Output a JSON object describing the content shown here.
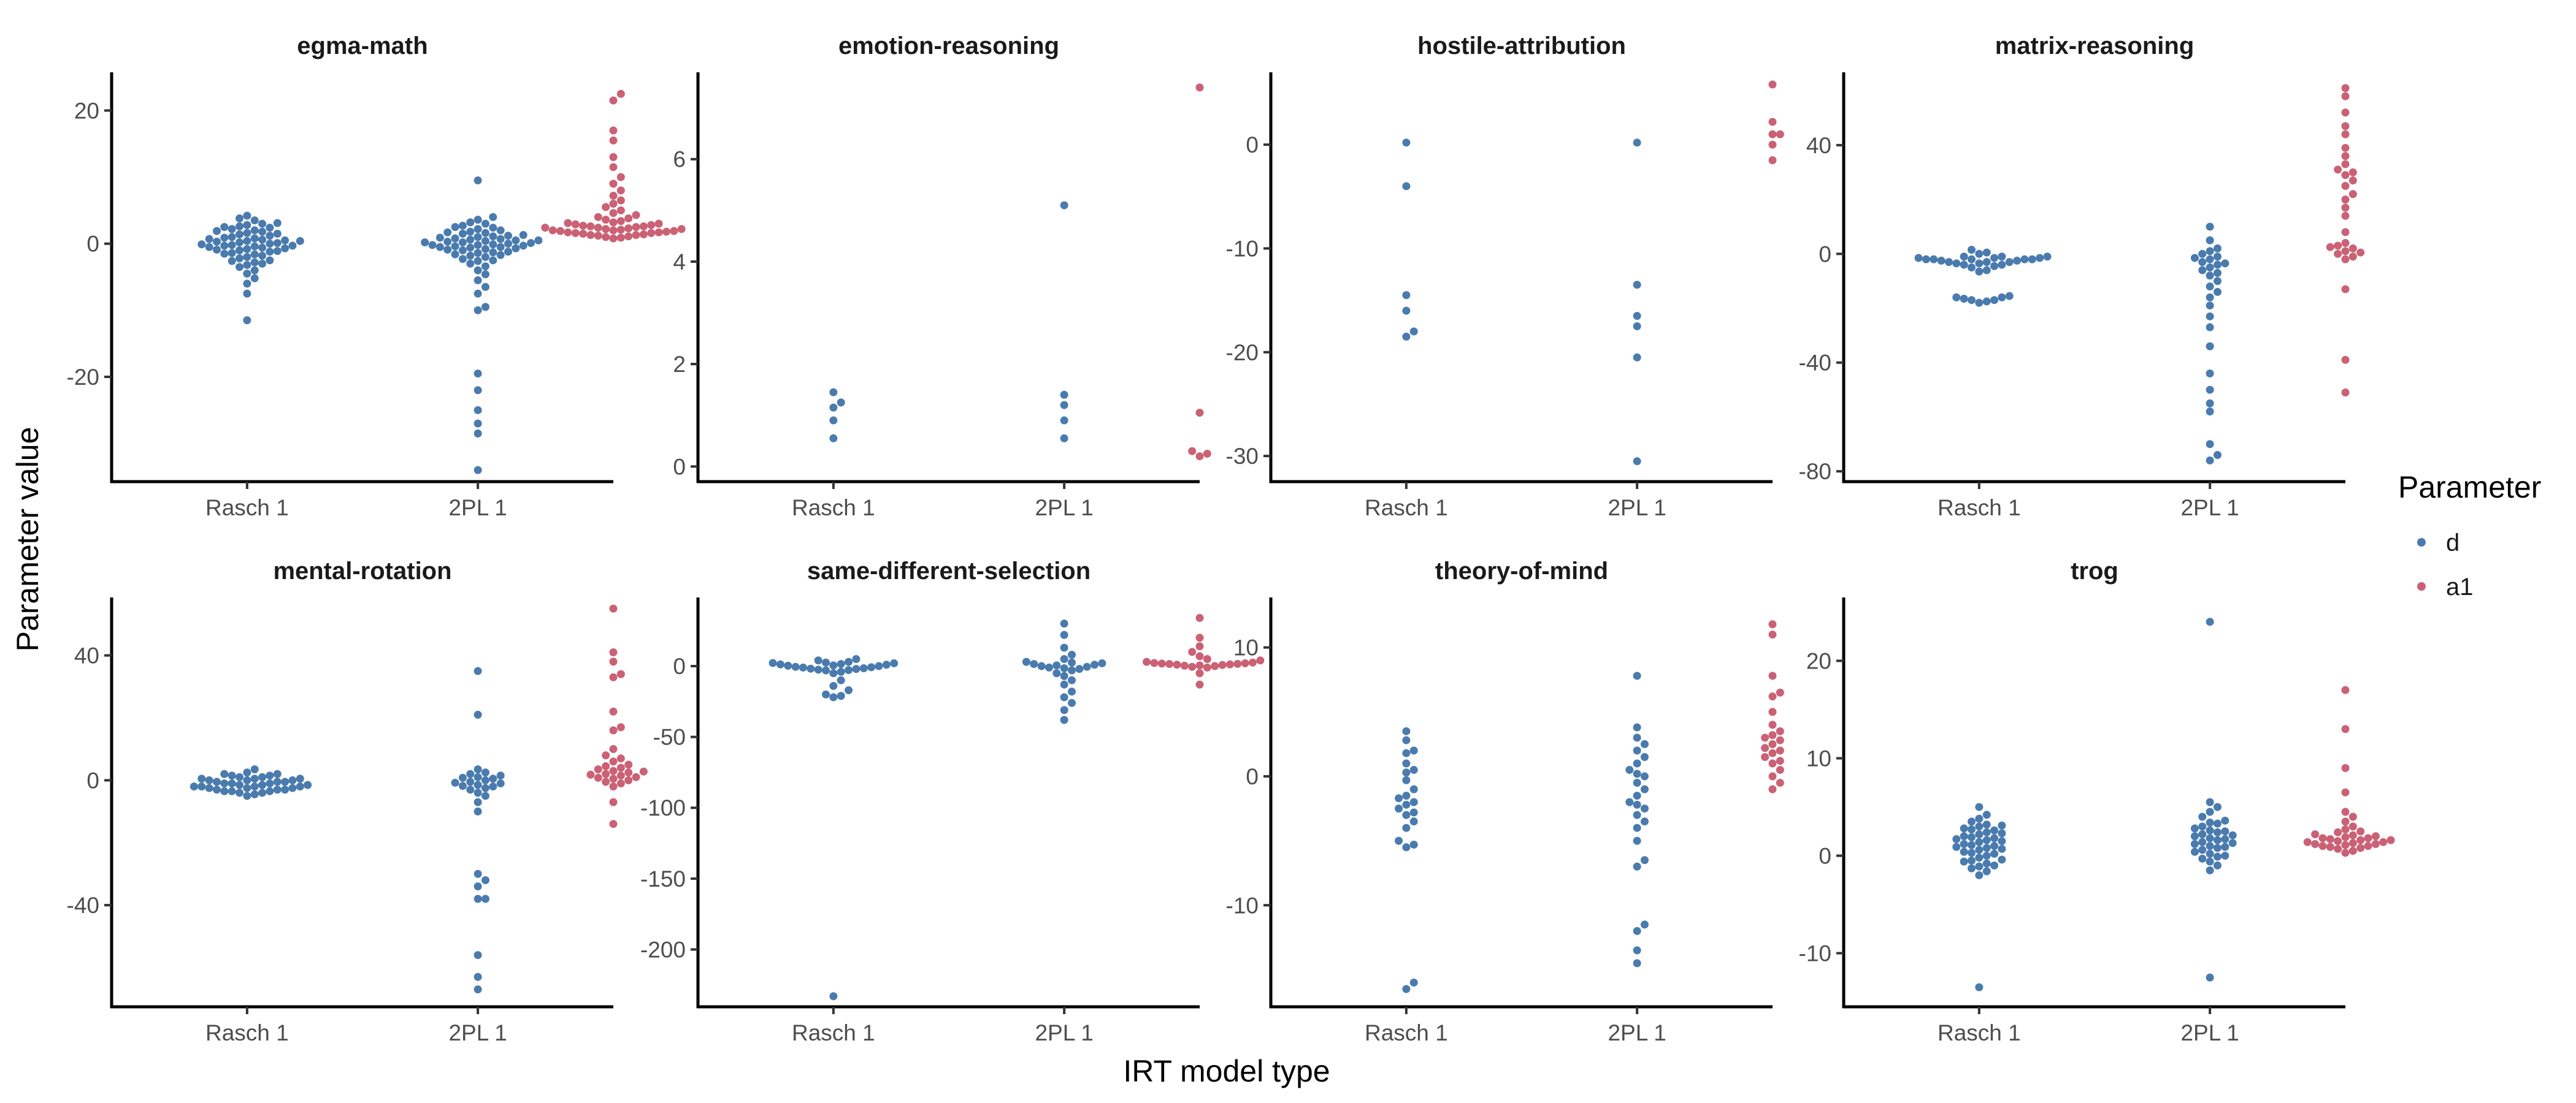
{
  "chart_data": {
    "type": "scatter",
    "subtype": "beeswarm-facets",
    "xlabel": "IRT model type",
    "ylabel": "Parameter value",
    "categories": [
      "Rasch 1",
      "2PL 1"
    ],
    "legend": {
      "title": "Parameter",
      "placement": "right",
      "items": [
        {
          "name": "d",
          "color": "#4A7BAE"
        },
        {
          "name": "a1",
          "color": "#CB6175"
        }
      ]
    },
    "grid": false,
    "panels": [
      {
        "title": "egma-math",
        "ylim": [
          -35,
          25
        ],
        "yticks": [
          20,
          0,
          -20
        ],
        "yticklabels": [
          "20",
          "0",
          "-20"
        ],
        "series": [
          {
            "name": "d",
            "category": "Rasch 1",
            "values": [
              4.2,
              3.8,
              3.5,
              3.1,
              2.8,
              2.5,
              2.2,
              2.0,
              1.8,
              1.6,
              1.4,
              1.2,
              1.0,
              0.9,
              0.8,
              0.6,
              0.5,
              0.4,
              0.3,
              0.2,
              0.1,
              0.0,
              -0.1,
              -0.2,
              -0.3,
              -0.4,
              -0.5,
              -0.6,
              -0.8,
              -0.9,
              -1.0,
              -1.2,
              -1.4,
              -1.6,
              -1.8,
              -2.0,
              -2.2,
              -2.5,
              -2.8,
              -3.0,
              -3.5,
              -4.0,
              -4.5,
              -5.2,
              -6.0,
              -7.5,
              -11.5,
              3.0,
              2.4,
              1.5,
              0.7,
              -0.7,
              -1.5,
              -2.6,
              1.9,
              -0.3,
              0.4,
              -1.1,
              2.6,
              -3.2
            ]
          },
          {
            "name": "d",
            "category": "2PL 1",
            "values": [
              9.5,
              4.0,
              3.6,
              3.2,
              3.0,
              2.7,
              2.4,
              2.2,
              2.0,
              1.8,
              1.6,
              1.5,
              1.3,
              1.1,
              1.0,
              0.9,
              0.8,
              0.7,
              0.6,
              0.5,
              0.4,
              0.3,
              0.2,
              0.1,
              0.0,
              -0.1,
              -0.2,
              -0.3,
              -0.4,
              -0.5,
              -0.6,
              -0.7,
              -0.8,
              -0.9,
              -1.0,
              -1.2,
              -1.4,
              -1.6,
              -1.8,
              -2.0,
              -2.3,
              -2.6,
              -3.0,
              -3.4,
              -4.0,
              -4.6,
              -5.5,
              -6.5,
              -7.5,
              -9.5,
              -10.0,
              -19.5,
              -22.0,
              -25.0,
              -27.0,
              -28.5,
              -34.0,
              1.2,
              -1.3,
              0.5,
              -0.5,
              2.5,
              -2.5,
              0.2,
              -0.2,
              1.7,
              -1.7
            ]
          },
          {
            "name": "a1",
            "category": "2PL 1",
            "values": [
              22.5,
              21.5,
              17.0,
              15.5,
              13.0,
              11.5,
              10.0,
              9.0,
              8.0,
              7.2,
              6.5,
              6.0,
              5.5,
              5.0,
              4.6,
              4.3,
              4.0,
              3.8,
              3.6,
              3.4,
              3.2,
              3.0,
              2.8,
              2.7,
              2.6,
              2.5,
              2.4,
              2.3,
              2.2,
              2.1,
              2.0,
              1.9,
              1.8,
              1.7,
              1.6,
              1.5,
              1.4,
              1.3,
              1.2,
              1.1,
              1.0,
              0.9,
              0.8,
              3.1,
              2.9,
              2.6,
              2.2,
              1.9,
              1.6,
              1.3,
              2.4,
              2.0,
              1.7
            ]
          }
        ]
      },
      {
        "title": "emotion-reasoning",
        "ylim": [
          -0.2,
          7.6
        ],
        "yticks": [
          6,
          4,
          2,
          0
        ],
        "yticklabels": [
          "6",
          "4",
          "2",
          "0"
        ],
        "series": [
          {
            "name": "d",
            "category": "Rasch 1",
            "values": [
              1.25,
              0.9,
              0.55,
              1.45,
              1.15
            ]
          },
          {
            "name": "d",
            "category": "2PL 1",
            "values": [
              5.1,
              1.4,
              0.9,
              0.55,
              1.2
            ]
          },
          {
            "name": "a1",
            "category": "2PL 1",
            "values": [
              7.4,
              1.05,
              0.3,
              0.2,
              0.25
            ]
          }
        ]
      },
      {
        "title": "hostile-attribution",
        "ylim": [
          -32,
          6.5
        ],
        "yticks": [
          0,
          -10,
          -20,
          -30
        ],
        "yticklabels": [
          "0",
          "-10",
          "-20",
          "-30"
        ],
        "series": [
          {
            "name": "d",
            "category": "Rasch 1",
            "values": [
              0.2,
              -4.0,
              -14.5,
              -16.0,
              -18.0,
              -18.5
            ]
          },
          {
            "name": "d",
            "category": "2PL 1",
            "values": [
              0.2,
              -13.5,
              -16.5,
              -17.5,
              -20.5,
              -30.5
            ]
          },
          {
            "name": "a1",
            "category": "2PL 1",
            "values": [
              5.8,
              2.2,
              1.0,
              1.0,
              0.0,
              -1.5
            ]
          }
        ]
      },
      {
        "title": "matrix-reasoning",
        "ylim": [
          -82,
          65
        ],
        "yticks": [
          40,
          0,
          -40,
          -80
        ],
        "yticklabels": [
          "40",
          "0",
          "-40",
          "-80"
        ],
        "series": [
          {
            "name": "d",
            "category": "Rasch 1",
            "values": [
              -2.0,
              -1.5,
              -3.0,
              -2.0,
              -1.0,
              -2.5,
              0.0,
              -3.5,
              -4.0,
              -5.0,
              -6.0,
              -16.0,
              -17.0,
              -18.0,
              -16.5,
              -17.5,
              -15.5,
              1.5,
              -2.0,
              -3.0,
              -4.5,
              -1.0,
              0.5,
              -6.5,
              -2.0,
              -1.5,
              -3.5,
              -16.0,
              -17.0,
              -2.5,
              -1.0,
              -4.0,
              -2.0,
              -3.0,
              -1.5
            ]
          },
          {
            "name": "d",
            "category": "2PL 1",
            "values": [
              10.0,
              5.0,
              2.0,
              0.0,
              -1.0,
              -2.0,
              -3.0,
              -4.0,
              -5.0,
              -6.0,
              -8.0,
              -10.0,
              -12.0,
              -14.0,
              -16.0,
              -19.0,
              -23.0,
              -27.0,
              -34.0,
              -44.0,
              -50.0,
              -55.0,
              -58.0,
              -70.0,
              -74.0,
              -76.0,
              1.0,
              -1.5,
              -3.5,
              -7.0
            ]
          },
          {
            "name": "a1",
            "category": "2PL 1",
            "values": [
              61.0,
              58.0,
              52.0,
              47.0,
              44.0,
              39.0,
              36.0,
              33.0,
              31.0,
              29.0,
              27.0,
              25.0,
              22.0,
              20.0,
              17.0,
              14.0,
              8.0,
              4.0,
              3.0,
              2.0,
              1.0,
              0.0,
              -1.0,
              -2.0,
              -13.0,
              -39.0,
              -51.0,
              30.0,
              2.5,
              0.5
            ]
          }
        ]
      },
      {
        "title": "mental-rotation",
        "ylim": [
          -71,
          57
        ],
        "yticks": [
          40,
          0,
          -40
        ],
        "yticklabels": [
          "40",
          "0",
          "-40"
        ],
        "series": [
          {
            "name": "d",
            "category": "Rasch 1",
            "values": [
              3.5,
              2.5,
              1.5,
              1.0,
              0.5,
              0.0,
              -0.5,
              -1.0,
              -1.5,
              -2.0,
              -2.5,
              -3.0,
              -3.5,
              -4.0,
              -5.0,
              2.0,
              0.5,
              -1.0,
              -2.0,
              -3.0,
              -4.0,
              1.5,
              0.0,
              -1.5,
              -2.5,
              -3.5,
              1.0,
              -0.5,
              -2.0,
              -3.0,
              0.5,
              -1.0,
              -2.5,
              2.0,
              -0.5,
              -1.5,
              -3.5,
              -4.5,
              0.0,
              -2.0
            ]
          },
          {
            "name": "d",
            "category": "2PL 1",
            "values": [
              35.0,
              21.0,
              3.5,
              2.5,
              1.5,
              1.0,
              0.5,
              0.0,
              -0.5,
              -1.0,
              -1.5,
              -2.0,
              -2.5,
              -3.0,
              -4.0,
              -5.0,
              -7.0,
              -10.0,
              -30.0,
              -32.0,
              -34.0,
              -38.0,
              -38.0,
              -56.0,
              -63.0,
              -67.0,
              0.8,
              -0.8,
              2.0,
              -1.8
            ]
          },
          {
            "name": "a1",
            "category": "2PL 1",
            "values": [
              55.0,
              41.0,
              38.0,
              34.0,
              33.0,
              22.0,
              17.0,
              16.0,
              10.0,
              8.0,
              7.0,
              6.0,
              5.0,
              4.5,
              4.0,
              3.5,
              3.0,
              2.5,
              2.0,
              1.5,
              1.0,
              0.5,
              0.0,
              -0.5,
              -1.0,
              -2.0,
              -7.0,
              -14.0,
              2.8,
              1.8,
              0.8
            ]
          }
        ]
      },
      {
        "title": "same-different-selection",
        "ylim": [
          -237,
          45
        ],
        "yticks": [
          0,
          -50,
          -100,
          -150,
          -200
        ],
        "yticklabels": [
          "0",
          "-50",
          "-100",
          "-150",
          "-200"
        ],
        "series": [
          {
            "name": "d",
            "category": "Rasch 1",
            "values": [
              5.0,
              4.0,
              3.0,
              2.5,
              2.0,
              1.5,
              1.0,
              0.5,
              0.0,
              -0.5,
              -1.0,
              -1.5,
              -2.0,
              -2.5,
              -3.0,
              -4.0,
              -5.0,
              -10.0,
              -14.0,
              -17.0,
              -20.0,
              -21.0,
              -22.0,
              -233.0,
              1.2,
              -0.8,
              0.3,
              -1.8,
              2.2,
              -2.8
            ]
          },
          {
            "name": "d",
            "category": "2PL 1",
            "values": [
              30.0,
              22.0,
              13.0,
              8.0,
              5.0,
              3.0,
              2.0,
              1.0,
              0.0,
              -1.0,
              -2.0,
              -3.0,
              -5.0,
              -7.0,
              -10.0,
              -13.0,
              -18.0,
              -22.0,
              -26.0,
              -31.0,
              -38.0,
              1.5,
              -0.5,
              0.5,
              -1.5,
              2.5
            ]
          },
          {
            "name": "a1",
            "category": "2PL 1",
            "values": [
              34.0,
              20.0,
              14.0,
              10.0,
              7.0,
              5.0,
              4.0,
              3.0,
              2.5,
              2.0,
              1.5,
              1.0,
              0.5,
              0.0,
              -0.5,
              -1.0,
              -5.0,
              -13.0,
              1.8,
              1.2,
              0.8,
              0.3,
              2.2,
              1.6
            ]
          }
        ]
      },
      {
        "title": "theory-of-mind",
        "ylim": [
          -17.5,
          13.5
        ],
        "yticks": [
          10,
          0,
          -10
        ],
        "yticklabels": [
          "10",
          "0",
          "-10"
        ],
        "series": [
          {
            "name": "d",
            "category": "Rasch 1",
            "values": [
              3.5,
              2.8,
              2.0,
              1.8,
              1.0,
              0.3,
              -0.3,
              -1.0,
              -1.5,
              -2.0,
              -2.5,
              -2.8,
              -3.5,
              -4.0,
              -5.0,
              -5.3,
              -5.5,
              -16.0,
              -16.5,
              0.5,
              -1.7,
              -2.2,
              -3.0
            ]
          },
          {
            "name": "d",
            "category": "2PL 1",
            "values": [
              7.8,
              3.8,
              3.0,
              2.5,
              2.0,
              1.5,
              1.0,
              0.5,
              0.0,
              -0.5,
              -1.0,
              -1.5,
              -2.0,
              -2.5,
              -3.0,
              -3.5,
              -4.0,
              -5.0,
              -6.5,
              -7.0,
              -11.5,
              -12.0,
              -13.5,
              -14.5,
              0.2,
              -2.2
            ]
          },
          {
            "name": "a1",
            "category": "2PL 1",
            "values": [
              11.8,
              11.0,
              7.8,
              6.5,
              6.2,
              5.0,
              4.0,
              3.5,
              3.2,
              3.0,
              2.8,
              2.5,
              2.0,
              1.8,
              1.5,
              1.2,
              1.0,
              0.5,
              0.0,
              -0.5,
              -1.0,
              2.2
            ]
          }
        ]
      },
      {
        "title": "trog",
        "ylim": [
          -15,
          26
        ],
        "yticks": [
          20,
          10,
          0,
          -10
        ],
        "yticklabels": [
          "20",
          "10",
          "0",
          "-10"
        ],
        "series": [
          {
            "name": "d",
            "category": "Rasch 1",
            "values": [
              5.0,
              4.2,
              3.8,
              3.5,
              3.2,
              3.0,
              2.8,
              2.6,
              2.4,
              2.2,
              2.0,
              1.8,
              1.6,
              1.4,
              1.2,
              1.0,
              0.8,
              0.6,
              0.4,
              0.2,
              0.0,
              -0.2,
              -0.4,
              -0.6,
              -0.8,
              -1.0,
              -1.3,
              -1.6,
              -2.0,
              -13.5,
              2.7,
              1.9,
              1.1,
              0.3,
              -0.5,
              2.3,
              1.5,
              0.7,
              3.1,
              -1.1,
              1.7,
              0.9
            ]
          },
          {
            "name": "d",
            "category": "2PL 1",
            "values": [
              24.0,
              5.5,
              5.0,
              4.5,
              4.0,
              3.6,
              3.3,
              3.0,
              2.8,
              2.6,
              2.4,
              2.2,
              2.0,
              1.8,
              1.6,
              1.4,
              1.2,
              1.0,
              0.8,
              0.6,
              0.4,
              0.2,
              0.0,
              -0.3,
              -0.6,
              -1.0,
              -1.5,
              -12.5,
              2.5,
              1.7,
              0.9,
              3.4,
              1.3,
              -0.1,
              2.1
            ]
          },
          {
            "name": "a1",
            "category": "2PL 1",
            "values": [
              17.0,
              13.0,
              9.0,
              6.5,
              4.5,
              4.0,
              3.5,
              3.0,
              2.7,
              2.4,
              2.2,
              2.0,
              1.9,
              1.8,
              1.7,
              1.6,
              1.5,
              1.4,
              1.3,
              1.2,
              1.1,
              1.0,
              0.9,
              0.8,
              0.7,
              0.5,
              0.3,
              2.5,
              1.6,
              1.2,
              2.1,
              1.4,
              1.0,
              1.8
            ]
          }
        ]
      }
    ]
  }
}
